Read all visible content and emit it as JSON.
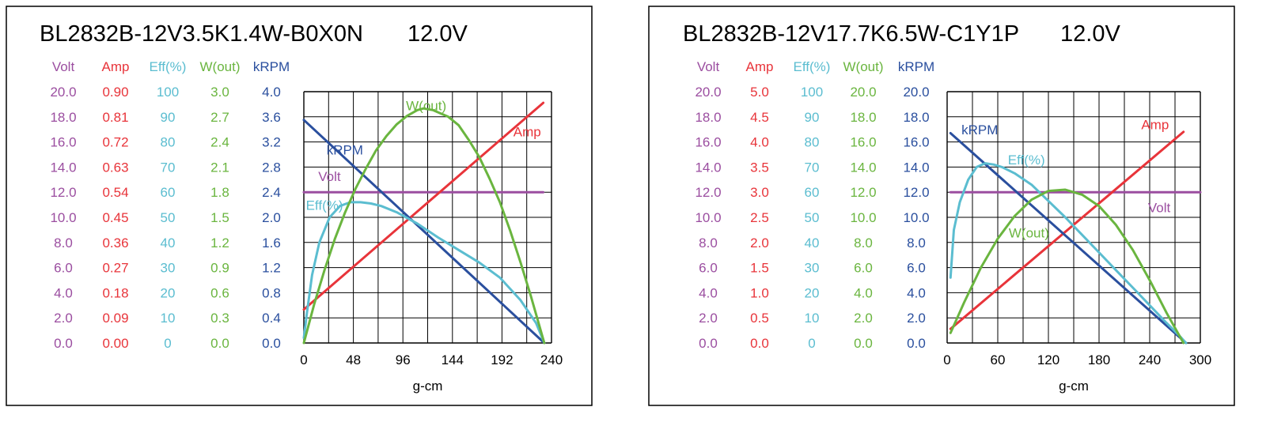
{
  "colors": {
    "volt": "#9b4ea0",
    "amp": "#e8343a",
    "eff": "#5bbdd0",
    "wout": "#6ab53f",
    "krpm": "#2a4f9e",
    "grid": "#000000",
    "text": "#000000"
  },
  "chart_data": [
    {
      "type": "line",
      "title": "BL2832B-12V3.5K1.4W-B0X0N",
      "voltage_label": "12.0V",
      "xlabel": "g-cm",
      "x_ticks": [
        "0",
        "48",
        "96",
        "144",
        "192",
        "240"
      ],
      "xlim": [
        0,
        240
      ],
      "grid": true,
      "axes": [
        {
          "key": "volt",
          "header": "Volt",
          "color": "#9b4ea0",
          "range": [
            0,
            20
          ],
          "ticks": [
            "20.0",
            "18.0",
            "16.0",
            "14.0",
            "12.0",
            "10.0",
            "8.0",
            "6.0",
            "4.0",
            "2.0",
            "0.0"
          ]
        },
        {
          "key": "amp",
          "header": "Amp",
          "color": "#e8343a",
          "range": [
            0,
            0.9
          ],
          "ticks": [
            "0.90",
            "0.81",
            "0.72",
            "0.63",
            "0.54",
            "0.45",
            "0.36",
            "0.27",
            "0.18",
            "0.09",
            "0.00"
          ]
        },
        {
          "key": "eff",
          "header": "Eff(%)",
          "color": "#5bbdd0",
          "range": [
            0,
            100
          ],
          "ticks": [
            "100",
            "90",
            "80",
            "70",
            "60",
            "50",
            "40",
            "30",
            "20",
            "10",
            "0"
          ]
        },
        {
          "key": "wout",
          "header": "W(out)",
          "color": "#6ab53f",
          "range": [
            0,
            3.0
          ],
          "ticks": [
            "3.0",
            "2.7",
            "2.4",
            "2.1",
            "1.8",
            "1.5",
            "1.2",
            "0.9",
            "0.6",
            "0.3",
            "0.0"
          ]
        },
        {
          "key": "krpm",
          "header": "kRPM",
          "color": "#2a4f9e",
          "range": [
            0,
            4.0
          ],
          "ticks": [
            "4.0",
            "3.6",
            "3.2",
            "2.8",
            "2.4",
            "2.0",
            "1.6",
            "1.2",
            "0.8",
            "0.4",
            "0.0"
          ]
        }
      ],
      "series": [
        {
          "name": "kRPM",
          "axis": "krpm",
          "label_at": [
            22,
            3.0
          ],
          "x": [
            0,
            233
          ],
          "y": [
            3.55,
            0
          ]
        },
        {
          "name": "Amp",
          "axis": "amp",
          "label_at": [
            203,
            0.74
          ],
          "x": [
            0,
            232
          ],
          "y": [
            0.12,
            0.86
          ]
        },
        {
          "name": "Volt",
          "axis": "volt",
          "label_at": [
            14,
            12.9
          ],
          "x": [
            0,
            232
          ],
          "y": [
            12.0,
            12.0
          ]
        },
        {
          "name": "Eff(%)",
          "axis": "eff",
          "label_at": [
            2,
            53
          ],
          "x": [
            0,
            3,
            8,
            15,
            25,
            35,
            45,
            55,
            65,
            75,
            90,
            110,
            130,
            150,
            170,
            190,
            210,
            225,
            233
          ],
          "y": [
            2,
            12,
            27,
            40,
            50,
            54.5,
            56,
            56,
            55.5,
            54.5,
            52,
            47.5,
            42,
            37,
            32,
            26,
            17,
            8,
            0
          ]
        },
        {
          "name": "W(out)",
          "axis": "wout",
          "label_at": [
            99,
            2.78
          ],
          "x": [
            0,
            10,
            20,
            30,
            40,
            50,
            60,
            70,
            80,
            90,
            100,
            110,
            116,
            125,
            140,
            150,
            160,
            170,
            180,
            190,
            200,
            210,
            220,
            233
          ],
          "y": [
            0,
            0.46,
            0.87,
            1.24,
            1.56,
            1.84,
            2.08,
            2.3,
            2.47,
            2.61,
            2.71,
            2.78,
            2.8,
            2.78,
            2.7,
            2.6,
            2.42,
            2.22,
            1.96,
            1.68,
            1.34,
            0.96,
            0.56,
            0
          ]
        }
      ]
    },
    {
      "type": "line",
      "title": "BL2832B-12V17.7K6.5W-C1Y1P",
      "voltage_label": "12.0V",
      "xlabel": "g-cm",
      "x_ticks": [
        "0",
        "60",
        "120",
        "180",
        "240",
        "300"
      ],
      "xlim": [
        0,
        300
      ],
      "grid": true,
      "axes": [
        {
          "key": "volt",
          "header": "Volt",
          "color": "#9b4ea0",
          "range": [
            0,
            20
          ],
          "ticks": [
            "20.0",
            "18.0",
            "16.0",
            "14.0",
            "12.0",
            "10.0",
            "8.0",
            "6.0",
            "4.0",
            "2.0",
            "0.0"
          ]
        },
        {
          "key": "amp",
          "header": "Amp",
          "color": "#e8343a",
          "range": [
            0,
            5.0
          ],
          "ticks": [
            "5.0",
            "4.5",
            "4.0",
            "3.5",
            "3.0",
            "2.5",
            "2.0",
            "1.5",
            "1.0",
            "0.5",
            "0.0"
          ]
        },
        {
          "key": "eff",
          "header": "Eff(%)",
          "color": "#5bbdd0",
          "range": [
            0,
            100
          ],
          "ticks": [
            "100",
            "90",
            "80",
            "70",
            "60",
            "50",
            "40",
            "30",
            "20",
            "10",
            "0"
          ]
        },
        {
          "key": "wout",
          "header": "W(out)",
          "color": "#6ab53f",
          "range": [
            0,
            20
          ],
          "ticks": [
            "20.0",
            "18.0",
            "16.0",
            "14.0",
            "12.0",
            "10.0",
            "8.0",
            "6.0",
            "4.0",
            "2.0",
            "0.0"
          ]
        },
        {
          "key": "krpm",
          "header": "kRPM",
          "color": "#2a4f9e",
          "range": [
            0,
            20
          ],
          "ticks": [
            "20.0",
            "18.0",
            "16.0",
            "14.0",
            "12.0",
            "10.0",
            "8.0",
            "6.0",
            "4.0",
            "2.0",
            "0.0"
          ]
        }
      ],
      "series": [
        {
          "name": "kRPM",
          "axis": "krpm",
          "label_at": [
            17,
            16.6
          ],
          "x": [
            4,
            283
          ],
          "y": [
            16.7,
            0
          ]
        },
        {
          "name": "Amp",
          "axis": "amp",
          "label_at": [
            230,
            4.25
          ],
          "x": [
            4,
            280
          ],
          "y": [
            0.28,
            4.2
          ]
        },
        {
          "name": "Volt",
          "axis": "volt",
          "label_at": [
            238,
            10.4
          ],
          "x": [
            4,
            300
          ],
          "y": [
            12.0,
            12.0
          ]
        },
        {
          "name": "Eff(%)",
          "axis": "eff",
          "label_at": [
            72,
            71
          ],
          "x": [
            4,
            8,
            15,
            25,
            35,
            45,
            55,
            65,
            80,
            100,
            120,
            140,
            160,
            180,
            200,
            220,
            240,
            260,
            275,
            283
          ],
          "y": [
            26,
            45,
            56,
            65,
            70,
            71.5,
            71,
            70,
            67.5,
            63,
            56.5,
            50,
            43,
            36,
            29,
            22,
            15,
            8,
            3,
            0
          ]
        },
        {
          "name": "W(out)",
          "axis": "wout",
          "label_at": [
            73,
            8.4
          ],
          "x": [
            4,
            20,
            40,
            60,
            80,
            100,
            120,
            140,
            160,
            180,
            200,
            220,
            240,
            260,
            280
          ],
          "y": [
            0.8,
            3.2,
            6.0,
            8.3,
            10.1,
            11.4,
            12.1,
            12.2,
            11.8,
            10.9,
            9.4,
            7.4,
            5.0,
            2.4,
            0
          ]
        }
      ]
    }
  ]
}
